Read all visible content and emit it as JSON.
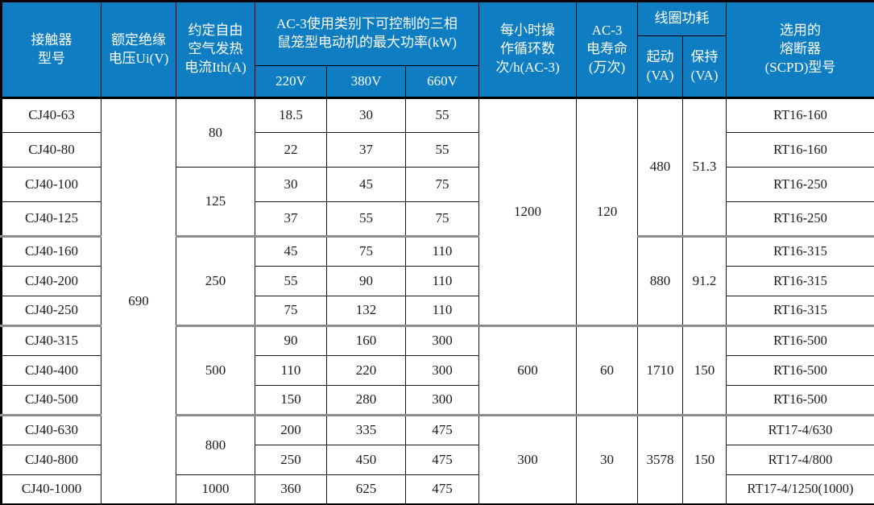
{
  "colors": {
    "header_bg": "#0e7dc2",
    "header_text": "#ffffff"
  },
  "table": {
    "headers": {
      "model": "接触器\n型号",
      "insulation_voltage": "额定绝缘\n电压Ui(V)",
      "ith": "约定自由\n空气发热\n电流Ith(A)",
      "ac3_power_group": "AC-3使用类别下可控制的三相\n鼠笼型电动机的最大功率(kW)",
      "v220": "220V",
      "v380": "380V",
      "v660": "660V",
      "cycles": "每小时操\n作循环数\n次/h(AC-3)",
      "life": "AC-3\n电寿命\n(万次)",
      "coil_group": "线圈功耗",
      "coil_start": "起动\n(VA)",
      "coil_hold": "保持\n(VA)",
      "fuse": "选用的\n熔断器\n(SCPD)型号"
    },
    "insulation_voltage": "690",
    "ith": [
      {
        "value": "80",
        "span": 2
      },
      {
        "value": "125",
        "span": 2
      },
      {
        "value": "250",
        "span": 3
      },
      {
        "value": "500",
        "span": 3
      },
      {
        "value": "800",
        "span": 2
      },
      {
        "value": "1000",
        "span": 1
      }
    ],
    "cycles": [
      {
        "value": "1200",
        "span": 7
      },
      {
        "value": "600",
        "span": 3
      },
      {
        "value": "300",
        "span": 3
      }
    ],
    "life": [
      {
        "value": "120",
        "span": 7
      },
      {
        "value": "60",
        "span": 3
      },
      {
        "value": "30",
        "span": 3
      }
    ],
    "start_va": [
      {
        "value": "480",
        "span": 4
      },
      {
        "value": "880",
        "span": 3
      },
      {
        "value": "1710",
        "span": 3
      },
      {
        "value": "3578",
        "span": 3
      }
    ],
    "hold_va": [
      {
        "value": "51.3",
        "span": 4
      },
      {
        "value": "91.2",
        "span": 3
      },
      {
        "value": "150",
        "span": 3
      },
      {
        "value": "150",
        "span": 3
      }
    ],
    "group_start_rows": [
      4,
      7,
      10
    ],
    "rows": [
      {
        "model": "CJ40-63",
        "p220": "18.5",
        "p380": "30",
        "p660": "55",
        "fuse": "RT16-160"
      },
      {
        "model": "CJ40-80",
        "p220": "22",
        "p380": "37",
        "p660": "55",
        "fuse": "RT16-160"
      },
      {
        "model": "CJ40-100",
        "p220": "30",
        "p380": "45",
        "p660": "75",
        "fuse": "RT16-250"
      },
      {
        "model": "CJ40-125",
        "p220": "37",
        "p380": "55",
        "p660": "75",
        "fuse": "RT16-250"
      },
      {
        "model": "CJ40-160",
        "p220": "45",
        "p380": "75",
        "p660": "110",
        "fuse": "RT16-315"
      },
      {
        "model": "CJ40-200",
        "p220": "55",
        "p380": "90",
        "p660": "110",
        "fuse": "RT16-315"
      },
      {
        "model": "CJ40-250",
        "p220": "75",
        "p380": "132",
        "p660": "110",
        "fuse": "RT16-315"
      },
      {
        "model": "CJ40-315",
        "p220": "90",
        "p380": "160",
        "p660": "300",
        "fuse": "RT16-500"
      },
      {
        "model": "CJ40-400",
        "p220": "110",
        "p380": "220",
        "p660": "300",
        "fuse": "RT16-500"
      },
      {
        "model": "CJ40-500",
        "p220": "150",
        "p380": "280",
        "p660": "300",
        "fuse": "RT16-500"
      },
      {
        "model": "CJ40-630",
        "p220": "200",
        "p380": "335",
        "p660": "475",
        "fuse": "RT17-4/630"
      },
      {
        "model": "CJ40-800",
        "p220": "250",
        "p380": "450",
        "p660": "475",
        "fuse": "RT17-4/800"
      },
      {
        "model": "CJ40-1000",
        "p220": "360",
        "p380": "625",
        "p660": "475",
        "fuse": "RT17-4/1250(1000)"
      }
    ]
  }
}
